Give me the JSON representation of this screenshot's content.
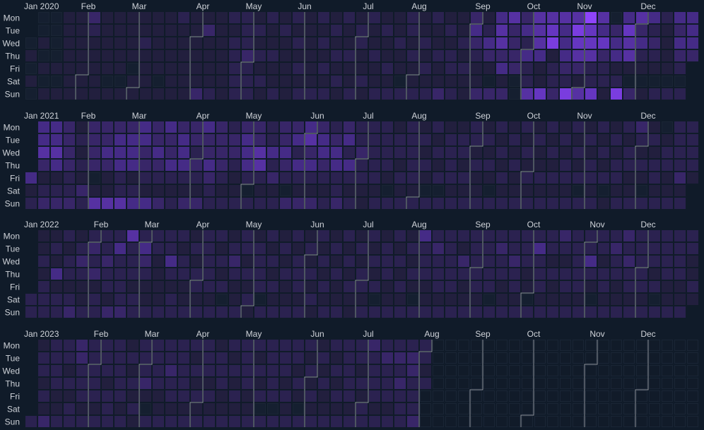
{
  "chart_data": {
    "type": "heatmap",
    "title": "",
    "description_scale": "levels 0-8 per day, '-' = no data",
    "day_labels": [
      "Mon",
      "Tue",
      "Wed",
      "Thu",
      "Fri",
      "Sat",
      "Sun"
    ],
    "month_labels": [
      "Jan",
      "Feb",
      "Mar",
      "Apr",
      "May",
      "Jun",
      "Jul",
      "Aug",
      "Sep",
      "Oct",
      "Nov",
      "Dec"
    ],
    "colors": [
      "#151f30",
      "#221f3e",
      "#2b2250",
      "#382668",
      "#452b86",
      "#5631a2",
      "#6536c0",
      "#7a3ddf",
      "#8e44fb"
    ],
    "empty_color": "#111b29",
    "years": [
      {
        "year": 2020,
        "weeks": [
          "0001010",
          "0010101",
          "0000101",
          "1111111",
          "1111111",
          "3211111",
          "1111101",
          "1111101",
          "1111011",
          "1121111",
          "1111101",
          "1111111",
          "2111111",
          "1111113",
          "1311112",
          "1111111",
          "2122222",
          "2223222",
          "1212121",
          "2112112",
          "1211111",
          "2121212",
          "1111112",
          "2121212",
          "1212121",
          "2112112",
          "1221121",
          "2112112",
          "1211212",
          "1121102",
          "2212112",
          "1121212",
          "2112113",
          "1212212",
          "1121211",
          "3432113",
          "1243103",
          "4553413",
          "5333300",
          "3424225",
          "5554116",
          "5671223",
          "5444327",
          "5765315",
          "8665226",
          "5463221",
          "0344127",
          "4655103",
          "5342101",
          "4232102",
          "2111102",
          "4343202",
          "4443000"
        ]
      },
      {
        "year": 2021,
        "weeks": [
          "0000412",
          "4453123",
          "4454123",
          "3333223",
          "1212132",
          "3333015",
          "3343115",
          "3444225",
          "3444124",
          "4433214",
          "3343213",
          "4334212",
          "3444213",
          "3323213",
          "4334322",
          "3333212",
          "2332112",
          "3444202",
          "3355212",
          "2242312",
          "3343203",
          "3424213",
          "4534213",
          "3443212",
          "2344223",
          "3424212",
          "2232211",
          "2222212",
          "2222102",
          "1221212",
          "2222212",
          "1212102",
          "2121202",
          "1222212",
          "1221212",
          "2212112",
          "1212102",
          "2121212",
          "1212112",
          "2121212",
          "1211212",
          "2121212",
          "1212212",
          "2121202",
          "1212212",
          "2121201",
          "1212212",
          "2122112",
          "3212102",
          "1212212",
          "0122112",
          "2222312",
          "2222112"
        ]
      },
      {
        "year": 2022,
        "weeks": [
          "0000022",
          "1121222",
          "1214122",
          "2122123",
          "1232112",
          "2323122",
          "2232213",
          "2422223",
          "5222122",
          "2432112",
          "2211112",
          "2242122",
          "2122112",
          "1212212",
          "2222212",
          "2121202",
          "1232112",
          "2212121",
          "1222202",
          "2121212",
          "1212112",
          "2122212",
          "1212121",
          "2121212",
          "1212112",
          "2121211",
          "1212212",
          "2121202",
          "1222112",
          "2121212",
          "1212102",
          "4222112",
          "2322212",
          "2222212",
          "2132112",
          "2222212",
          "2222202",
          "2322112",
          "2232212",
          "2221102",
          "2422212",
          "2212112",
          "3212212",
          "2222212",
          "2242102",
          "2212212",
          "2322112",
          "3232212",
          "2222212",
          "2221202",
          "2222112",
          "2222112",
          "2211212"
        ]
      },
      {
        "year": 2023,
        "weeks": [
          "0000002",
          "1221213",
          "2222112",
          "2212122",
          "3322212",
          "2222212",
          "2221222",
          "2222212",
          "1212121",
          "2223102",
          "2222112",
          "2232212",
          "2222212",
          "2121212",
          "2221212",
          "1222112",
          "2121212",
          "2222112",
          "2121202",
          "2222202",
          "2221212",
          "2212102",
          "2121212",
          "1212112",
          "2121212",
          "2222212",
          "2212122",
          "3222212",
          "2322212",
          "2323222",
          "2332223",
          "2212---",
          "-------",
          "-------",
          "-------",
          "-------",
          "-------",
          "-------",
          "-------",
          "-------",
          "-------",
          "-------",
          "-------",
          "-------",
          "-------",
          "-------",
          "-------",
          "-------",
          "-------",
          "-------",
          "-------",
          "-------",
          "-------"
        ]
      }
    ]
  }
}
